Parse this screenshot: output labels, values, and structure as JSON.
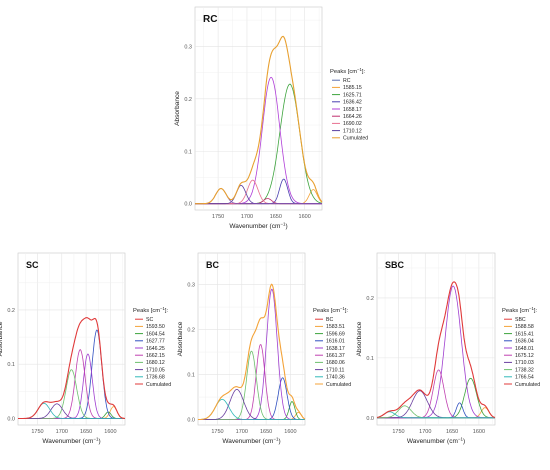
{
  "figure": {
    "ylabel": "Absorbance",
    "xlabel_prefix": "Wavenumber (cm",
    "xlabel_sup": "−1",
    "xlabel_suffix": ")",
    "legend_title_prefix": "Peaks [cm",
    "legend_title_sup": "−1",
    "legend_title_suffix": "]:"
  },
  "chart_data": [
    {
      "type": "line",
      "title": "RC",
      "xlabel": "Wavenumber (cm−1)",
      "ylabel": "Absorbance",
      "x_reversed": true,
      "xlim": [
        1790,
        1570
      ],
      "ylim": [
        -0.012,
        0.375
      ],
      "xticks": [
        1750,
        1700,
        1650,
        1600
      ],
      "yticks": [
        0.0,
        0.1,
        0.2,
        0.3
      ],
      "ytick_labels": [
        "0.0",
        "0.1",
        "0.2",
        "0.3"
      ],
      "grid": true,
      "legend_position": "right",
      "legend_title": "Peaks [cm−1]:",
      "series": [
        {
          "name": "RC",
          "color": "#5b6fb0",
          "kind": "sum"
        },
        {
          "name": "1585.15",
          "color": "#f4a338",
          "center": 1585.15,
          "height": 0.027,
          "width": 7
        },
        {
          "name": "1625.71",
          "color": "#3da43d",
          "center": 1625.71,
          "height": 0.228,
          "width": 17
        },
        {
          "name": "1636.42",
          "color": "#4a3fb0",
          "center": 1636.42,
          "height": 0.047,
          "width": 7
        },
        {
          "name": "1658.17",
          "color": "#b03fd8",
          "center": 1658.17,
          "height": 0.241,
          "width": 15
        },
        {
          "name": "1664.26",
          "color": "#c0306e",
          "center": 1664.26,
          "height": 0.01,
          "width": 7
        },
        {
          "name": "1690.02",
          "color": "#e87090",
          "center": 1690.02,
          "height": 0.045,
          "width": 9
        },
        {
          "name": "1710.12",
          "color": "#5a3fa0",
          "center": 1710.12,
          "height": 0.035,
          "width": 8
        },
        {
          "name": "Cumulated",
          "color": "#e8a030",
          "kind": "total"
        }
      ],
      "extra_peaks": [
        {
          "center": 1745,
          "height": 0.029,
          "width": 9
        }
      ]
    },
    {
      "type": "line",
      "title": "SC",
      "xlabel": "Wavenumber (cm−1)",
      "ylabel": "Absorbance",
      "x_reversed": true,
      "xlim": [
        1790,
        1570
      ],
      "ylim": [
        -0.012,
        0.305
      ],
      "xticks": [
        1750,
        1700,
        1650,
        1600
      ],
      "yticks": [
        0.0,
        0.1,
        0.2
      ],
      "ytick_labels": [
        "0.0",
        "0.1",
        "0.2"
      ],
      "grid": true,
      "legend_position": "right",
      "legend_title": "Peaks [cm−1]:",
      "series": [
        {
          "name": "SC",
          "color": "#e03a3a",
          "kind": "sum"
        },
        {
          "name": "1593.50",
          "color": "#f4a338",
          "center": 1593.5,
          "height": 0.022,
          "width": 7
        },
        {
          "name": "1604.54",
          "color": "#3da43d",
          "center": 1604.54,
          "height": 0.012,
          "width": 6
        },
        {
          "name": "1627.77",
          "color": "#3050c0",
          "center": 1627.77,
          "height": 0.163,
          "width": 10
        },
        {
          "name": "1646.25",
          "color": "#a03fd0",
          "center": 1646.25,
          "height": 0.119,
          "width": 9
        },
        {
          "name": "1662.15",
          "color": "#c040b0",
          "center": 1662.15,
          "height": 0.127,
          "width": 10
        },
        {
          "name": "1680.12",
          "color": "#6dbf6d",
          "center": 1680.12,
          "height": 0.09,
          "width": 11
        },
        {
          "name": "1710.05",
          "color": "#6a3fa0",
          "center": 1710.05,
          "height": 0.027,
          "width": 12
        },
        {
          "name": "1736.68",
          "color": "#30b8b8",
          "center": 1736.68,
          "height": 0.028,
          "width": 12
        },
        {
          "name": "Cumulated",
          "color": "#e03a3a",
          "kind": "total"
        }
      ],
      "extra_peaks": []
    },
    {
      "type": "line",
      "title": "BC",
      "xlabel": "Wavenumber (cm−1)",
      "ylabel": "Absorbance",
      "x_reversed": true,
      "xlim": [
        1790,
        1570
      ],
      "ylim": [
        -0.012,
        0.37
      ],
      "xticks": [
        1750,
        1700,
        1650,
        1600
      ],
      "yticks": [
        0.0,
        0.1,
        0.2,
        0.3
      ],
      "ytick_labels": [
        "0.0",
        "0.1",
        "0.2",
        "0.3"
      ],
      "grid": true,
      "legend_position": "right",
      "legend_title": "Peaks [cm−1]:",
      "series": [
        {
          "name": "BC",
          "color": "#e03a3a",
          "kind": "sum"
        },
        {
          "name": "1583.51",
          "color": "#f4a338",
          "center": 1583.51,
          "height": 0.016,
          "width": 6
        },
        {
          "name": "1596.69",
          "color": "#3da43d",
          "center": 1596.69,
          "height": 0.04,
          "width": 6
        },
        {
          "name": "1616.01",
          "color": "#3050c0",
          "center": 1616.01,
          "height": 0.093,
          "width": 9
        },
        {
          "name": "1638.17",
          "color": "#a03fd0",
          "center": 1638.17,
          "height": 0.29,
          "width": 11
        },
        {
          "name": "1661.37",
          "color": "#c040b0",
          "center": 1661.37,
          "height": 0.167,
          "width": 9
        },
        {
          "name": "1680.06",
          "color": "#6dbf6d",
          "center": 1680.06,
          "height": 0.152,
          "width": 10
        },
        {
          "name": "1710.11",
          "color": "#6a3fa0",
          "center": 1710.11,
          "height": 0.067,
          "width": 14
        },
        {
          "name": "1740.36",
          "color": "#30b8b8",
          "center": 1740.36,
          "height": 0.045,
          "width": 14
        },
        {
          "name": "Cumulated",
          "color": "#f4a338",
          "kind": "total"
        }
      ],
      "extra_peaks": []
    },
    {
      "type": "line",
      "title": "SBC",
      "xlabel": "Wavenumber (cm−1)",
      "ylabel": "Absorbance",
      "x_reversed": true,
      "xlim": [
        1790,
        1570
      ],
      "ylim": [
        -0.012,
        0.275
      ],
      "xticks": [
        1750,
        1700,
        1650,
        1600
      ],
      "yticks": [
        0.0,
        0.1,
        0.2
      ],
      "ytick_labels": [
        "0.0",
        "0.1",
        "0.2"
      ],
      "grid": true,
      "legend_position": "right",
      "legend_title": "Peaks [cm−1]:",
      "series": [
        {
          "name": "SBC",
          "color": "#e03a3a",
          "kind": "sum"
        },
        {
          "name": "1588.58",
          "color": "#f4a338",
          "center": 1588.58,
          "height": 0.017,
          "width": 7
        },
        {
          "name": "1615.41",
          "color": "#3da43d",
          "center": 1615.41,
          "height": 0.066,
          "width": 11
        },
        {
          "name": "1636.04",
          "color": "#3050c0",
          "center": 1636.04,
          "height": 0.025,
          "width": 6
        },
        {
          "name": "1648.01",
          "color": "#a03fd0",
          "center": 1648.01,
          "height": 0.22,
          "width": 15
        },
        {
          "name": "1675.12",
          "color": "#c040b0",
          "center": 1675.12,
          "height": 0.08,
          "width": 10
        },
        {
          "name": "1710.03",
          "color": "#6a3fa0",
          "center": 1710.03,
          "height": 0.045,
          "width": 14
        },
        {
          "name": "1738.32",
          "color": "#6dbf6d",
          "center": 1738.32,
          "height": 0.02,
          "width": 12
        },
        {
          "name": "1766.54",
          "color": "#30b8b8",
          "center": 1766.54,
          "height": 0.01,
          "width": 10
        },
        {
          "name": "Cumulated",
          "color": "#e03a3a",
          "kind": "total"
        }
      ],
      "extra_peaks": []
    }
  ]
}
